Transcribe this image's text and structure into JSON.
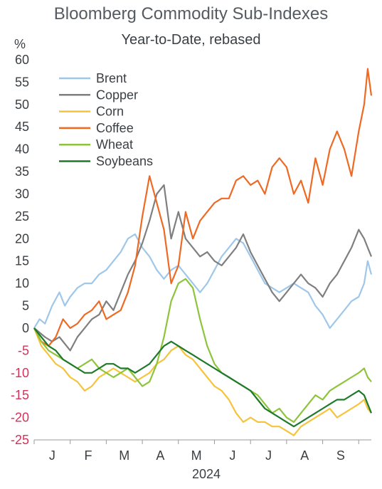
{
  "chart_data": {
    "type": "line",
    "title": "Bloomberg Commodity Sub-Indexes",
    "subtitle": "Year-to-Date, rebased",
    "ylabel": "%",
    "xlabel": "2024",
    "ylim": [
      -25,
      60
    ],
    "yticks": [
      60,
      55,
      50,
      45,
      40,
      35,
      30,
      25,
      20,
      15,
      10,
      5,
      0,
      -5,
      -10,
      -15,
      -20,
      -25
    ],
    "xlim": [
      0,
      9.35
    ],
    "month_labels": [
      "J",
      "F",
      "M",
      "A",
      "M",
      "J",
      "J",
      "A",
      "S"
    ],
    "legend_position": "top-left",
    "series": [
      {
        "name": "Brent",
        "color": "#9fc7ea",
        "x": [
          0,
          0.15,
          0.3,
          0.5,
          0.7,
          0.85,
          1.0,
          1.2,
          1.4,
          1.6,
          1.8,
          2.0,
          2.2,
          2.4,
          2.6,
          2.8,
          3.0,
          3.2,
          3.4,
          3.6,
          3.8,
          4.0,
          4.2,
          4.4,
          4.6,
          4.8,
          5.0,
          5.2,
          5.4,
          5.6,
          5.8,
          6.0,
          6.2,
          6.4,
          6.6,
          6.8,
          7.0,
          7.2,
          7.4,
          7.6,
          7.8,
          8.0,
          8.2,
          8.4,
          8.6,
          8.8,
          9.0,
          9.15,
          9.25,
          9.35
        ],
        "values": [
          0,
          2,
          1,
          5,
          8,
          5,
          7,
          9,
          10,
          10,
          12,
          13,
          15,
          17,
          20,
          21,
          18,
          16,
          13,
          11,
          13,
          14,
          12,
          10,
          8,
          10,
          13,
          16,
          18,
          20,
          19,
          16,
          13,
          10,
          9,
          8,
          9,
          10,
          9,
          8,
          5,
          3,
          0,
          2,
          4,
          6,
          7,
          10,
          15,
          12
        ]
      },
      {
        "name": "Copper",
        "color": "#7f7f7f",
        "x": [
          0,
          0.3,
          0.5,
          0.7,
          0.9,
          1.0,
          1.2,
          1.4,
          1.6,
          1.8,
          2.0,
          2.2,
          2.4,
          2.6,
          2.8,
          3.0,
          3.2,
          3.4,
          3.6,
          3.8,
          4.0,
          4.2,
          4.4,
          4.6,
          4.8,
          5.0,
          5.2,
          5.4,
          5.6,
          5.8,
          6.0,
          6.2,
          6.4,
          6.6,
          6.8,
          7.0,
          7.2,
          7.4,
          7.6,
          7.8,
          8.0,
          8.2,
          8.4,
          8.6,
          8.8,
          9.0,
          9.15,
          9.25,
          9.35
        ],
        "values": [
          0,
          -2,
          -3,
          -2,
          -4,
          -5,
          -2,
          0,
          2,
          3,
          6,
          4,
          8,
          12,
          15,
          19,
          24,
          30,
          32,
          20,
          26,
          20,
          18,
          16,
          17,
          15,
          14,
          16,
          18,
          21,
          17,
          14,
          11,
          8,
          6,
          8,
          10,
          12,
          10,
          9,
          7,
          10,
          12,
          15,
          18,
          22,
          20,
          18,
          16
        ]
      },
      {
        "name": "Corn",
        "color": "#f5c43c",
        "x": [
          0,
          0.2,
          0.4,
          0.6,
          0.8,
          1.0,
          1.2,
          1.4,
          1.6,
          1.8,
          2.0,
          2.2,
          2.4,
          2.6,
          2.8,
          3.0,
          3.2,
          3.4,
          3.6,
          3.8,
          4.0,
          4.2,
          4.4,
          4.6,
          4.8,
          5.0,
          5.2,
          5.4,
          5.6,
          5.8,
          6.0,
          6.2,
          6.4,
          6.6,
          6.8,
          7.0,
          7.2,
          7.4,
          7.6,
          7.8,
          8.0,
          8.2,
          8.4,
          8.6,
          8.8,
          9.0,
          9.15,
          9.25,
          9.35
        ],
        "values": [
          0,
          -4,
          -6,
          -8,
          -9,
          -11,
          -12,
          -14,
          -13,
          -11,
          -10,
          -9,
          -10,
          -11,
          -12,
          -11,
          -10,
          -8,
          -7,
          -5,
          -4,
          -6,
          -7,
          -9,
          -11,
          -13,
          -14,
          -16,
          -19,
          -21,
          -20,
          -21,
          -21,
          -22,
          -22,
          -23,
          -24,
          -22,
          -21,
          -20,
          -19,
          -18,
          -20,
          -19,
          -18,
          -17,
          -16,
          -18,
          -19
        ]
      },
      {
        "name": "Coffee",
        "color": "#ee6a24",
        "x": [
          0,
          0.2,
          0.4,
          0.6,
          0.8,
          1.0,
          1.2,
          1.4,
          1.6,
          1.8,
          2.0,
          2.2,
          2.4,
          2.6,
          2.8,
          3.0,
          3.2,
          3.4,
          3.6,
          3.8,
          4.0,
          4.2,
          4.4,
          4.6,
          4.8,
          5.0,
          5.2,
          5.4,
          5.6,
          5.8,
          6.0,
          6.2,
          6.4,
          6.6,
          6.8,
          7.0,
          7.2,
          7.4,
          7.6,
          7.8,
          8.0,
          8.2,
          8.4,
          8.6,
          8.8,
          9.0,
          9.15,
          9.25,
          9.35
        ],
        "values": [
          0,
          -3,
          -4,
          -2,
          2,
          0,
          1,
          3,
          4,
          6,
          2,
          3,
          4,
          8,
          14,
          25,
          34,
          28,
          22,
          10,
          14,
          26,
          20,
          24,
          26,
          28,
          29,
          29,
          33,
          34,
          32,
          33,
          30,
          36,
          38,
          36,
          30,
          33,
          28,
          38,
          32,
          40,
          44,
          40,
          34,
          44,
          50,
          58,
          52
        ]
      },
      {
        "name": "Wheat",
        "color": "#8ec43c",
        "x": [
          0,
          0.2,
          0.4,
          0.6,
          0.8,
          1.0,
          1.2,
          1.4,
          1.6,
          1.8,
          2.0,
          2.2,
          2.4,
          2.6,
          2.8,
          3.0,
          3.2,
          3.4,
          3.6,
          3.8,
          4.0,
          4.2,
          4.4,
          4.6,
          4.8,
          5.0,
          5.2,
          5.4,
          5.6,
          5.8,
          6.0,
          6.2,
          6.4,
          6.6,
          6.8,
          7.0,
          7.2,
          7.4,
          7.6,
          7.8,
          8.0,
          8.2,
          8.4,
          8.6,
          8.8,
          9.0,
          9.15,
          9.25,
          9.35
        ],
        "values": [
          0,
          -3,
          -5,
          -6,
          -7,
          -8,
          -9,
          -8,
          -7,
          -9,
          -10,
          -11,
          -10,
          -9,
          -11,
          -13,
          -12,
          -8,
          -2,
          6,
          10,
          11,
          9,
          2,
          -4,
          -8,
          -10,
          -11,
          -12,
          -13,
          -14,
          -15,
          -17,
          -19,
          -18,
          -20,
          -21,
          -19,
          -17,
          -15,
          -16,
          -14,
          -13,
          -12,
          -11,
          -10,
          -9,
          -11,
          -12
        ]
      },
      {
        "name": "Soybeans",
        "color": "#1e7a2a",
        "x": [
          0,
          0.2,
          0.4,
          0.6,
          0.8,
          1.0,
          1.2,
          1.4,
          1.6,
          1.8,
          2.0,
          2.2,
          2.4,
          2.6,
          2.8,
          3.0,
          3.2,
          3.4,
          3.6,
          3.8,
          4.0,
          4.2,
          4.4,
          4.6,
          4.8,
          5.0,
          5.2,
          5.4,
          5.6,
          5.8,
          6.0,
          6.2,
          6.4,
          6.6,
          6.8,
          7.0,
          7.2,
          7.4,
          7.6,
          7.8,
          8.0,
          8.2,
          8.4,
          8.6,
          8.8,
          9.0,
          9.15,
          9.25,
          9.35
        ],
        "values": [
          0,
          -2,
          -4,
          -5,
          -7,
          -8,
          -9,
          -10,
          -10,
          -9,
          -8,
          -8,
          -9,
          -9,
          -10,
          -9,
          -8,
          -6,
          -4,
          -3,
          -4,
          -5,
          -6,
          -7,
          -8,
          -9,
          -10,
          -11,
          -12,
          -13,
          -14,
          -16,
          -18,
          -19,
          -20,
          -21,
          -22,
          -21,
          -20,
          -19,
          -18,
          -17,
          -16,
          -16,
          -15,
          -14,
          -15,
          -17,
          -19
        ]
      }
    ]
  }
}
